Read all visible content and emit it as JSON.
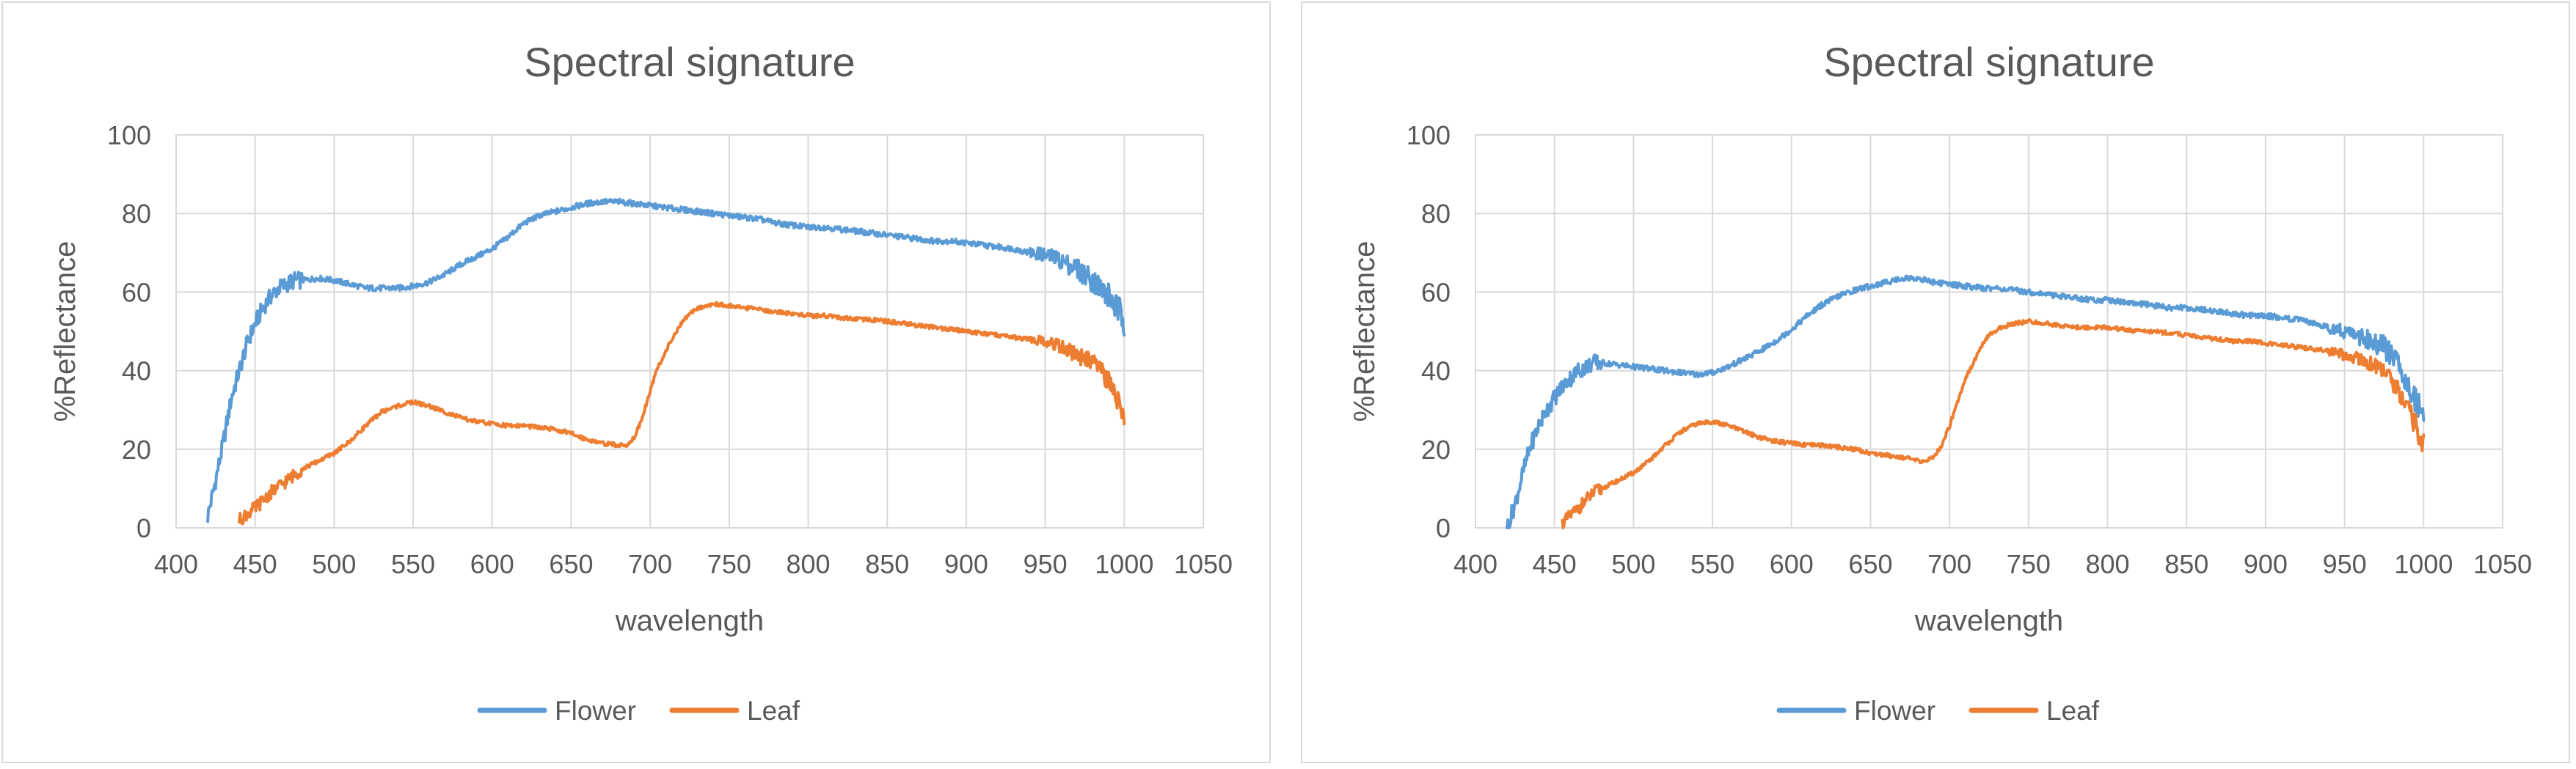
{
  "colors": {
    "flower": "#5b9bd5",
    "leaf": "#ed7d31",
    "grid": "#d9d9d9",
    "text": "#595959"
  },
  "chart_data": [
    {
      "type": "line",
      "title": "Spectral signature",
      "xlabel": "wavelength",
      "ylabel": "%Reflectance",
      "xlim": [
        400,
        1050
      ],
      "ylim": [
        0,
        100
      ],
      "xticks": [
        400,
        450,
        500,
        550,
        600,
        650,
        700,
        750,
        800,
        850,
        900,
        950,
        1000,
        1050
      ],
      "yticks": [
        0,
        20,
        40,
        60,
        80,
        100
      ],
      "grid": true,
      "legend": "bottom-center",
      "series": [
        {
          "name": "Flower",
          "color": "#5b9bd5",
          "x": [
            420,
            425,
            430,
            435,
            440,
            445,
            450,
            455,
            460,
            465,
            470,
            475,
            480,
            490,
            500,
            510,
            520,
            530,
            540,
            550,
            560,
            570,
            580,
            590,
            600,
            610,
            620,
            630,
            640,
            650,
            660,
            670,
            680,
            690,
            700,
            710,
            720,
            730,
            740,
            750,
            760,
            770,
            780,
            790,
            800,
            810,
            820,
            830,
            840,
            850,
            860,
            870,
            880,
            890,
            900,
            910,
            920,
            930,
            940,
            950,
            960,
            970,
            980,
            985,
            990,
            995,
            1000
          ],
          "y": [
            3,
            12,
            22,
            33,
            40,
            47,
            52,
            56,
            59,
            61,
            62,
            63,
            63,
            63.5,
            63,
            62,
            61,
            61,
            61,
            61.5,
            62.5,
            64.5,
            67,
            69,
            71,
            74,
            77.5,
            79.5,
            80.5,
            81.5,
            82.5,
            83,
            83,
            82.5,
            82,
            81.5,
            81,
            80.5,
            80,
            79.5,
            79,
            78.5,
            77.5,
            77,
            76.5,
            76.5,
            76,
            75.5,
            75,
            74.5,
            74,
            73.5,
            73,
            73,
            72.5,
            72,
            71.5,
            71,
            70,
            69.5,
            68,
            66,
            63,
            61,
            59,
            56,
            53
          ]
        },
        {
          "name": "Leaf",
          "color": "#ed7d31",
          "x": [
            440,
            445,
            450,
            455,
            460,
            465,
            470,
            475,
            480,
            490,
            500,
            510,
            520,
            530,
            540,
            550,
            560,
            570,
            580,
            590,
            600,
            610,
            620,
            630,
            640,
            650,
            660,
            670,
            680,
            685,
            690,
            695,
            700,
            705,
            710,
            715,
            720,
            725,
            730,
            740,
            750,
            760,
            770,
            780,
            790,
            800,
            810,
            820,
            830,
            840,
            850,
            860,
            870,
            880,
            890,
            900,
            910,
            920,
            930,
            940,
            950,
            960,
            970,
            980,
            985,
            990,
            995,
            1000
          ],
          "y": [
            2,
            3.5,
            5,
            7,
            9,
            10.5,
            12,
            13.5,
            15,
            17,
            19,
            22,
            26,
            29.5,
            31,
            32,
            31,
            29.5,
            28,
            27,
            26.5,
            26,
            26,
            25.5,
            25,
            24,
            22.5,
            21.5,
            21,
            21,
            23,
            28,
            35,
            41,
            45,
            49,
            52,
            54.5,
            56,
            57,
            56.5,
            56,
            55.5,
            55,
            54.5,
            54,
            54,
            53.5,
            53,
            53,
            52.5,
            52,
            51.5,
            51,
            50.5,
            50,
            49.5,
            49,
            48.5,
            48,
            47.5,
            46,
            44,
            42,
            40,
            37,
            33,
            29
          ]
        }
      ]
    },
    {
      "type": "line",
      "title": "Spectral signature",
      "xlabel": "wavelength",
      "ylabel": "%Reflectance",
      "xlim": [
        400,
        1050
      ],
      "ylim": [
        0,
        100
      ],
      "xticks": [
        400,
        450,
        500,
        550,
        600,
        650,
        700,
        750,
        800,
        850,
        900,
        950,
        1000,
        1050
      ],
      "yticks": [
        0,
        20,
        40,
        60,
        80,
        100
      ],
      "grid": true,
      "legend": "bottom-center",
      "series": [
        {
          "name": "Flower",
          "color": "#5b9bd5",
          "x": [
            420,
            425,
            430,
            435,
            440,
            445,
            450,
            455,
            460,
            465,
            470,
            475,
            480,
            490,
            500,
            510,
            520,
            530,
            540,
            550,
            560,
            570,
            580,
            590,
            600,
            610,
            620,
            630,
            640,
            650,
            660,
            670,
            680,
            690,
            700,
            710,
            720,
            730,
            740,
            750,
            760,
            770,
            780,
            790,
            800,
            810,
            820,
            830,
            840,
            850,
            860,
            870,
            880,
            890,
            900,
            910,
            920,
            930,
            940,
            950,
            960,
            970,
            975,
            980,
            985,
            990,
            995,
            1000
          ],
          "y": [
            0,
            6,
            14,
            21,
            26,
            30,
            33,
            36,
            38,
            40,
            41,
            42,
            42,
            41.5,
            41,
            40.5,
            40,
            39.5,
            39,
            39.5,
            41,
            43,
            45,
            47.5,
            50.5,
            54,
            57,
            59,
            60.5,
            61.5,
            62.5,
            63.5,
            63.5,
            62.5,
            62,
            61.5,
            61,
            61,
            60.5,
            60,
            59.5,
            59,
            58.5,
            58,
            58,
            57.5,
            57,
            56.5,
            56,
            56,
            55.5,
            55,
            54.5,
            54,
            54,
            53.5,
            53,
            52,
            51,
            50,
            48.5,
            47,
            46,
            44,
            41,
            37,
            33,
            28
          ]
        },
        {
          "name": "Leaf",
          "color": "#ed7d31",
          "x": [
            455,
            460,
            465,
            470,
            475,
            480,
            490,
            500,
            510,
            520,
            530,
            540,
            550,
            560,
            570,
            580,
            590,
            600,
            610,
            620,
            630,
            640,
            650,
            660,
            670,
            680,
            685,
            690,
            695,
            700,
            705,
            710,
            715,
            720,
            725,
            730,
            740,
            750,
            760,
            770,
            780,
            790,
            800,
            810,
            820,
            830,
            840,
            850,
            860,
            870,
            880,
            890,
            900,
            910,
            920,
            930,
            940,
            950,
            960,
            970,
            975,
            980,
            985,
            990,
            995,
            1000
          ],
          "y": [
            1,
            3,
            5,
            7,
            9,
            10,
            12,
            14,
            17,
            21,
            24.5,
            26.5,
            27,
            26,
            24.5,
            23,
            22,
            21.5,
            21,
            21,
            20.5,
            20,
            19,
            18.5,
            18,
            17,
            17,
            18,
            21,
            26,
            32,
            38,
            42,
            46,
            49,
            50.5,
            52,
            52.5,
            52,
            51.5,
            51,
            51,
            51,
            50.5,
            50,
            50,
            49.5,
            49,
            48.5,
            48,
            47.5,
            47.5,
            47,
            46.5,
            46,
            45.5,
            45,
            44,
            43,
            41,
            39.5,
            37,
            34,
            30,
            26,
            21
          ]
        }
      ]
    }
  ]
}
